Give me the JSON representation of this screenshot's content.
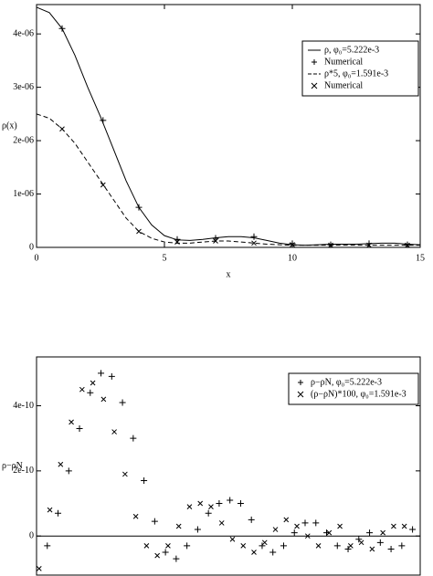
{
  "chart_data": [
    {
      "type": "line",
      "xlabel": "x",
      "ylabel": "ρ(x)",
      "xlim": [
        0,
        15
      ],
      "xticks": [
        0,
        5,
        10,
        15
      ],
      "ylim": [
        0,
        4.55e-06
      ],
      "yticks": [
        0,
        {
          "value": 1e-06,
          "label": "1e-06"
        },
        {
          "value": 2e-06,
          "label": "2e-06"
        },
        {
          "value": 3e-06,
          "label": "3e-06"
        },
        {
          "value": 4e-06,
          "label": "4e-06"
        }
      ],
      "grid": false,
      "legend": "top-right",
      "series": [
        {
          "name": "ρ, φ₀=5.222e-3",
          "color": "#000",
          "line_style": "solid",
          "x": [
            0,
            0.5,
            1,
            1.5,
            2,
            2.5,
            3,
            3.5,
            4,
            4.5,
            5,
            5.5,
            6,
            6.5,
            7,
            7.5,
            8,
            8.5,
            9,
            9.5,
            10,
            10.5,
            11,
            11.5,
            12,
            12.5,
            13,
            13.5,
            14,
            14.5,
            15
          ],
          "values": [
            4.5e-06,
            4.4e-06,
            4.1e-06,
            3.6e-06,
            3e-06,
            2.45e-06,
            1.85e-06,
            1.25e-06,
            7.5e-07,
            4.2e-07,
            2.2e-07,
            1.4e-07,
            1.3e-07,
            1.5e-07,
            1.8e-07,
            2e-07,
            2e-07,
            1.8e-07,
            1.3e-07,
            8e-08,
            5e-08,
            4e-08,
            5e-08,
            6e-08,
            6e-08,
            6e-08,
            7e-08,
            8e-08,
            8e-08,
            6e-08,
            5e-08
          ]
        },
        {
          "name": "Numerical",
          "color": "#000",
          "marker": "+",
          "x": [
            1,
            2.6,
            4,
            5.5,
            7,
            8.5,
            10,
            11.5,
            13,
            14.5
          ],
          "values": [
            4.1e-06,
            2.38e-06,
            7.5e-07,
            1.5e-07,
            1.7e-07,
            2e-07,
            7e-08,
            5e-08,
            7e-08,
            5e-08
          ]
        },
        {
          "name": "ρ*5, φ₀=1.591e-3",
          "color": "#000",
          "line_style": "dashed",
          "x": [
            0,
            0.5,
            1,
            1.5,
            2,
            2.5,
            3,
            3.5,
            4,
            4.5,
            5,
            5.5,
            6,
            6.5,
            7,
            7.5,
            8,
            8.5,
            9,
            9.5,
            10,
            10.5,
            11,
            11.5,
            12,
            12.5,
            13,
            13.5,
            14,
            14.5,
            15
          ],
          "values": [
            2.5e-06,
            2.42e-06,
            2.22e-06,
            1.95e-06,
            1.6e-06,
            1.25e-06,
            9e-07,
            5.5e-07,
            3e-07,
            1.7e-07,
            1e-07,
            8e-08,
            8e-08,
            1e-07,
            1.2e-07,
            1.2e-07,
            1e-07,
            8e-08,
            6e-08,
            5e-08,
            4e-08,
            4e-08,
            4e-08,
            4e-08,
            4e-08,
            4e-08,
            4e-08,
            4e-08,
            4e-08,
            4e-08,
            4e-08
          ]
        },
        {
          "name": "Numerical",
          "color": "#000",
          "marker": "x",
          "x": [
            1,
            2.6,
            4,
            5.5,
            7,
            8.5,
            10,
            11.5,
            13,
            14.5
          ],
          "values": [
            2.22e-06,
            1.17e-06,
            3e-07,
            1e-07,
            1.2e-07,
            8e-08,
            5e-08,
            4e-08,
            4e-08,
            4e-08
          ]
        }
      ]
    },
    {
      "type": "scatter",
      "ylabel": "ρ−ρN",
      "xlim": [
        0,
        15
      ],
      "ylim": [
        -1.2e-10,
        5.5e-10
      ],
      "yticks": [
        0,
        {
          "value": 2e-10,
          "label": "2e-10"
        },
        {
          "value": 4e-10,
          "label": "4e-10"
        }
      ],
      "grid": false,
      "zero_line": true,
      "legend": "top-right",
      "series": [
        {
          "name": "ρ−ρN, φ₀=5.222e-3",
          "color": "#000",
          "marker": "+",
          "x": [
            0.42,
            0.84,
            1.26,
            1.68,
            2.1,
            2.52,
            2.94,
            3.36,
            3.78,
            4.2,
            4.62,
            5.04,
            5.46,
            5.88,
            6.3,
            6.72,
            7.14,
            7.56,
            7.98,
            8.4,
            8.82,
            9.24,
            9.66,
            10.08,
            10.5,
            10.92,
            11.34,
            11.76,
            12.18,
            12.6,
            13.02,
            13.44,
            13.86,
            14.28,
            14.7
          ],
          "values": [
            -3e-11,
            7e-11,
            2e-10,
            3.3e-10,
            4.4e-10,
            5e-10,
            4.9e-10,
            4.1e-10,
            3e-10,
            1.7e-10,
            4.5e-11,
            -5e-11,
            -7e-11,
            -3e-11,
            2e-11,
            7e-11,
            1e-10,
            1.1e-10,
            1e-10,
            5e-11,
            -3e-11,
            -5e-11,
            -3e-11,
            1e-11,
            4e-11,
            4e-11,
            1e-11,
            -3e-11,
            -4e-11,
            -1e-11,
            1e-11,
            -2e-11,
            -4e-11,
            -3e-11,
            2e-11
          ]
        },
        {
          "name": "(ρ−ρN)*100, φ₀=1.591e-3",
          "color": "#000",
          "marker": "x",
          "x": [
            0.1,
            0.52,
            0.94,
            1.36,
            1.78,
            2.2,
            2.62,
            3.04,
            3.46,
            3.88,
            4.3,
            4.72,
            5.14,
            5.56,
            5.98,
            6.4,
            6.82,
            7.24,
            7.66,
            8.08,
            8.5,
            8.92,
            9.34,
            9.76,
            10.18,
            10.6,
            11.02,
            11.44,
            11.86,
            12.28,
            12.7,
            13.12,
            13.54,
            13.96,
            14.38
          ],
          "values": [
            -1e-10,
            8e-11,
            2.2e-10,
            3.5e-10,
            4.5e-10,
            4.7e-10,
            4.2e-10,
            3.2e-10,
            1.9e-10,
            6e-11,
            -3e-11,
            -6e-11,
            -3e-11,
            3e-11,
            9e-11,
            1e-10,
            9e-11,
            4e-11,
            -1e-11,
            -3e-11,
            -5e-11,
            -2e-11,
            2e-11,
            5e-11,
            3e-11,
            0,
            -3e-11,
            1e-11,
            3e-11,
            -3e-11,
            -2e-11,
            -4e-11,
            1e-11,
            3e-11,
            3e-11
          ]
        }
      ]
    }
  ]
}
